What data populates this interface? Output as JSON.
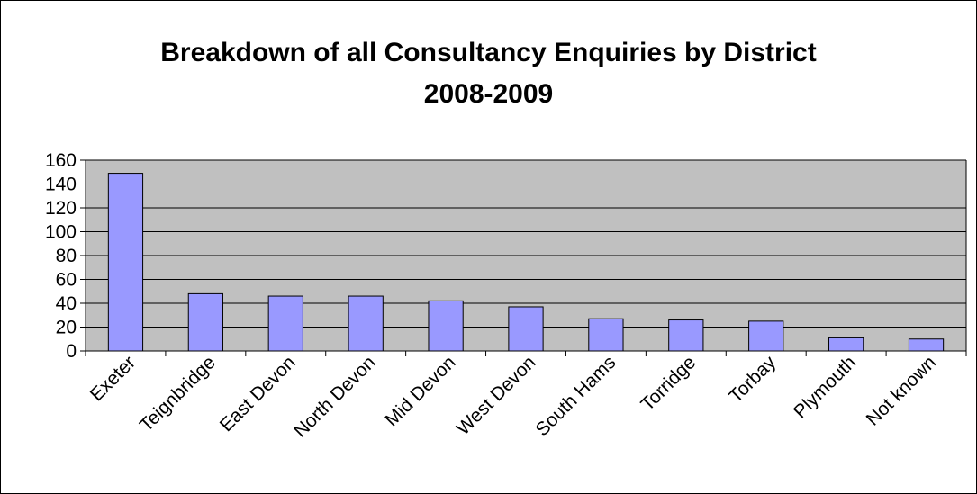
{
  "colors": {
    "plot_background": "#c0c0c0",
    "bar_fill": "#9999ff",
    "bar_stroke": "#000000",
    "gridline": "#000000"
  },
  "chart_data": {
    "type": "bar",
    "title_line1": "Breakdown of all Consultancy Enquiries by District",
    "title_line2": "2008-2009",
    "xlabel": "",
    "ylabel": "",
    "categories": [
      "Exeter",
      "Teignbridge",
      "East Devon",
      "North Devon",
      "Mid Devon",
      "West Devon",
      "South Hams",
      "Torridge",
      "Torbay",
      "Plymouth",
      "Not known"
    ],
    "values": [
      149,
      48,
      46,
      46,
      42,
      37,
      27,
      26,
      25,
      11,
      10
    ],
    "ylim": [
      0,
      160
    ],
    "yticks": [
      "0",
      "20",
      "40",
      "60",
      "80",
      "100",
      "120",
      "140",
      "160"
    ],
    "grid": true,
    "legend": "none"
  }
}
